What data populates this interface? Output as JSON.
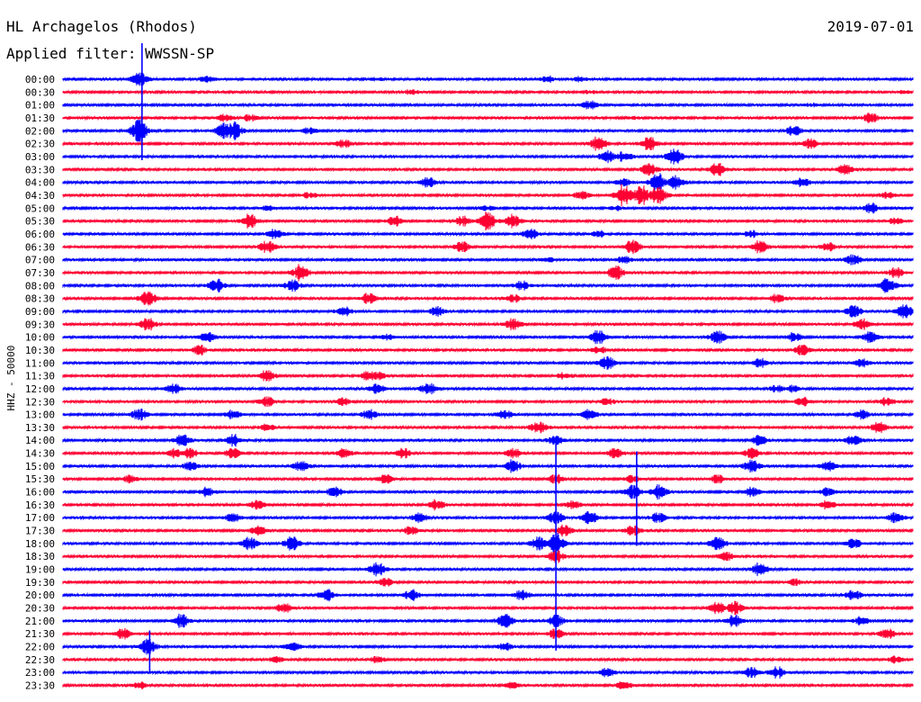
{
  "header": {
    "station": "HL Archagelos (Rhodos)",
    "date": "2019-07-01",
    "filter_label": "Applied filter: WWSSN-SP"
  },
  "chart_data": {
    "type": "line",
    "title": "HL Archagelos (Rhodos)",
    "subtitle": "Applied filter: WWSSN-SP",
    "date": "2019-07-01",
    "xlabel": "",
    "ylabel": "HHZ - 50000",
    "trace_minutes": 30,
    "grid": false,
    "colors": {
      "odd_hour": "#0000ff",
      "half_hour": "#ff0033",
      "labels": "#000000"
    },
    "rows": [
      {
        "label": "00:00",
        "events": [
          [
            0.09,
            8
          ],
          [
            0.17,
            4
          ],
          [
            0.37,
            2
          ],
          [
            0.57,
            4
          ],
          [
            0.61,
            3
          ]
        ]
      },
      {
        "label": "00:30",
        "events": [
          [
            0.41,
            3
          ],
          [
            0.62,
            2
          ],
          [
            0.99,
            2
          ]
        ]
      },
      {
        "label": "01:00",
        "events": [
          [
            0.62,
            5
          ],
          [
            0.88,
            2
          ]
        ]
      },
      {
        "label": "01:30",
        "events": [
          [
            0.19,
            5
          ],
          [
            0.22,
            4
          ],
          [
            0.67,
            2
          ],
          [
            0.95,
            6
          ]
        ]
      },
      {
        "label": "02:00",
        "events": [
          [
            0.09,
            14
          ],
          [
            0.19,
            10
          ],
          [
            0.2,
            12
          ],
          [
            0.29,
            4
          ],
          [
            0.86,
            6
          ]
        ]
      },
      {
        "label": "02:30",
        "events": [
          [
            0.33,
            5
          ],
          [
            0.63,
            8
          ],
          [
            0.69,
            8
          ],
          [
            0.88,
            6
          ]
        ]
      },
      {
        "label": "03:00",
        "events": [
          [
            0.64,
            8
          ],
          [
            0.66,
            6
          ],
          [
            0.72,
            10
          ]
        ]
      },
      {
        "label": "03:30",
        "events": [
          [
            0.69,
            7
          ],
          [
            0.77,
            8
          ],
          [
            0.92,
            6
          ]
        ]
      },
      {
        "label": "04:00",
        "events": [
          [
            0.43,
            6
          ],
          [
            0.66,
            5
          ],
          [
            0.7,
            10
          ],
          [
            0.72,
            9
          ],
          [
            0.87,
            5
          ]
        ]
      },
      {
        "label": "04:30",
        "events": [
          [
            0.29,
            4
          ],
          [
            0.61,
            5
          ],
          [
            0.66,
            12
          ],
          [
            0.68,
            12
          ],
          [
            0.7,
            11
          ],
          [
            0.97,
            4
          ]
        ]
      },
      {
        "label": "05:00",
        "events": [
          [
            0.24,
            3
          ],
          [
            0.5,
            3
          ],
          [
            0.65,
            3
          ],
          [
            0.95,
            6
          ]
        ]
      },
      {
        "label": "05:30",
        "events": [
          [
            0.22,
            8
          ],
          [
            0.39,
            6
          ],
          [
            0.47,
            6
          ],
          [
            0.5,
            10
          ],
          [
            0.53,
            8
          ],
          [
            0.98,
            4
          ]
        ]
      },
      {
        "label": "06:00",
        "events": [
          [
            0.25,
            6
          ],
          [
            0.55,
            6
          ],
          [
            0.63,
            4
          ],
          [
            0.81,
            4
          ]
        ]
      },
      {
        "label": "06:30",
        "events": [
          [
            0.24,
            7
          ],
          [
            0.47,
            6
          ],
          [
            0.67,
            8
          ],
          [
            0.82,
            7
          ],
          [
            0.9,
            5
          ]
        ]
      },
      {
        "label": "07:00",
        "events": [
          [
            0.57,
            3
          ],
          [
            0.66,
            4
          ],
          [
            0.93,
            6
          ]
        ]
      },
      {
        "label": "07:30",
        "events": [
          [
            0.28,
            9
          ],
          [
            0.65,
            8
          ],
          [
            0.98,
            6
          ]
        ]
      },
      {
        "label": "08:00",
        "events": [
          [
            0.18,
            9
          ],
          [
            0.27,
            7
          ],
          [
            0.54,
            5
          ],
          [
            0.97,
            10
          ]
        ]
      },
      {
        "label": "08:30",
        "events": [
          [
            0.1,
            9
          ],
          [
            0.36,
            6
          ],
          [
            0.53,
            5
          ],
          [
            0.84,
            5
          ]
        ]
      },
      {
        "label": "09:00",
        "events": [
          [
            0.33,
            6
          ],
          [
            0.44,
            6
          ],
          [
            0.93,
            7
          ],
          [
            0.99,
            8
          ]
        ]
      },
      {
        "label": "09:30",
        "events": [
          [
            0.1,
            7
          ],
          [
            0.53,
            7
          ],
          [
            0.94,
            6
          ]
        ]
      },
      {
        "label": "10:00",
        "events": [
          [
            0.17,
            6
          ],
          [
            0.38,
            4
          ],
          [
            0.63,
            8
          ],
          [
            0.77,
            8
          ],
          [
            0.86,
            5
          ],
          [
            0.95,
            6
          ]
        ]
      },
      {
        "label": "10:30",
        "events": [
          [
            0.16,
            6
          ],
          [
            0.63,
            5
          ],
          [
            0.87,
            6
          ]
        ]
      },
      {
        "label": "11:00",
        "events": [
          [
            0.64,
            8
          ],
          [
            0.82,
            5
          ],
          [
            0.94,
            5
          ]
        ]
      },
      {
        "label": "11:30",
        "events": [
          [
            0.24,
            7
          ],
          [
            0.36,
            6
          ],
          [
            0.37,
            5
          ],
          [
            0.59,
            4
          ]
        ]
      },
      {
        "label": "12:00",
        "events": [
          [
            0.13,
            6
          ],
          [
            0.37,
            6
          ],
          [
            0.43,
            7
          ],
          [
            0.84,
            4
          ],
          [
            0.86,
            4
          ]
        ]
      },
      {
        "label": "12:30",
        "events": [
          [
            0.24,
            6
          ],
          [
            0.33,
            5
          ],
          [
            0.64,
            4
          ],
          [
            0.87,
            5
          ],
          [
            0.97,
            5
          ]
        ]
      },
      {
        "label": "13:00",
        "events": [
          [
            0.09,
            7
          ],
          [
            0.2,
            5
          ],
          [
            0.36,
            6
          ],
          [
            0.52,
            5
          ],
          [
            0.62,
            6
          ],
          [
            0.94,
            6
          ]
        ]
      },
      {
        "label": "13:30",
        "events": [
          [
            0.24,
            5
          ],
          [
            0.56,
            8
          ],
          [
            0.96,
            7
          ]
        ]
      },
      {
        "label": "14:00",
        "events": [
          [
            0.14,
            7
          ],
          [
            0.2,
            7
          ],
          [
            0.58,
            6
          ],
          [
            0.82,
            6
          ],
          [
            0.93,
            6
          ]
        ]
      },
      {
        "label": "14:30",
        "events": [
          [
            0.13,
            6
          ],
          [
            0.15,
            6
          ],
          [
            0.2,
            6
          ],
          [
            0.33,
            6
          ],
          [
            0.4,
            6
          ],
          [
            0.53,
            6
          ],
          [
            0.65,
            6
          ],
          [
            0.81,
            6
          ]
        ]
      },
      {
        "label": "15:00",
        "events": [
          [
            0.15,
            5
          ],
          [
            0.28,
            6
          ],
          [
            0.53,
            7
          ],
          [
            0.81,
            8
          ],
          [
            0.9,
            6
          ]
        ]
      },
      {
        "label": "15:30",
        "events": [
          [
            0.08,
            5
          ],
          [
            0.38,
            5
          ],
          [
            0.58,
            5
          ],
          [
            0.67,
            5
          ],
          [
            0.77,
            5
          ]
        ]
      },
      {
        "label": "16:00",
        "events": [
          [
            0.17,
            5
          ],
          [
            0.32,
            6
          ],
          [
            0.67,
            8
          ],
          [
            0.7,
            9
          ],
          [
            0.81,
            6
          ],
          [
            0.9,
            5
          ]
        ]
      },
      {
        "label": "16:30",
        "events": [
          [
            0.23,
            6
          ],
          [
            0.44,
            6
          ],
          [
            0.6,
            5
          ],
          [
            0.9,
            5
          ]
        ]
      },
      {
        "label": "17:00",
        "events": [
          [
            0.2,
            5
          ],
          [
            0.42,
            6
          ],
          [
            0.58,
            7
          ],
          [
            0.62,
            7
          ],
          [
            0.7,
            6
          ],
          [
            0.98,
            7
          ]
        ]
      },
      {
        "label": "17:30",
        "events": [
          [
            0.23,
            6
          ],
          [
            0.41,
            5
          ],
          [
            0.59,
            6
          ],
          [
            0.67,
            6
          ]
        ]
      },
      {
        "label": "18:00",
        "events": [
          [
            0.22,
            7
          ],
          [
            0.27,
            8
          ],
          [
            0.56,
            8
          ],
          [
            0.58,
            12
          ],
          [
            0.77,
            8
          ],
          [
            0.93,
            6
          ]
        ]
      },
      {
        "label": "18:30",
        "events": [
          [
            0.58,
            7
          ],
          [
            0.78,
            5
          ]
        ]
      },
      {
        "label": "19:00",
        "events": [
          [
            0.37,
            8
          ],
          [
            0.82,
            7
          ]
        ]
      },
      {
        "label": "19:30",
        "events": [
          [
            0.38,
            5
          ],
          [
            0.86,
            4
          ]
        ]
      },
      {
        "label": "20:00",
        "events": [
          [
            0.31,
            7
          ],
          [
            0.41,
            6
          ],
          [
            0.54,
            6
          ],
          [
            0.93,
            6
          ]
        ]
      },
      {
        "label": "20:30",
        "events": [
          [
            0.26,
            6
          ],
          [
            0.77,
            7
          ],
          [
            0.79,
            8
          ]
        ]
      },
      {
        "label": "21:00",
        "events": [
          [
            0.14,
            8
          ],
          [
            0.52,
            8
          ],
          [
            0.58,
            7
          ],
          [
            0.79,
            7
          ],
          [
            0.94,
            5
          ]
        ]
      },
      {
        "label": "21:30",
        "events": [
          [
            0.07,
            6
          ],
          [
            0.58,
            6
          ],
          [
            0.97,
            6
          ]
        ]
      },
      {
        "label": "22:00",
        "events": [
          [
            0.1,
            9
          ],
          [
            0.27,
            5
          ],
          [
            0.52,
            4
          ]
        ]
      },
      {
        "label": "22:30",
        "events": [
          [
            0.25,
            4
          ],
          [
            0.37,
            4
          ],
          [
            0.98,
            5
          ]
        ]
      },
      {
        "label": "23:00",
        "events": [
          [
            0.64,
            5
          ],
          [
            0.81,
            6
          ],
          [
            0.84,
            7
          ]
        ]
      },
      {
        "label": "23:30",
        "events": [
          [
            0.09,
            4
          ],
          [
            0.53,
            4
          ],
          [
            0.66,
            5
          ]
        ]
      }
    ],
    "spikes": [
      {
        "row": "00:00",
        "x": 0.093,
        "up": 40,
        "down": 90,
        "color": "#0000ff"
      },
      {
        "row": "15:00",
        "x": 0.58,
        "up": 28,
        "down": 205,
        "color": "#0000ff"
      },
      {
        "row": "16:00",
        "x": 0.675,
        "up": 45,
        "down": 60,
        "color": "#0000ff"
      },
      {
        "row": "22:00",
        "x": 0.102,
        "up": 18,
        "down": 28,
        "color": "#0000ff"
      }
    ]
  }
}
